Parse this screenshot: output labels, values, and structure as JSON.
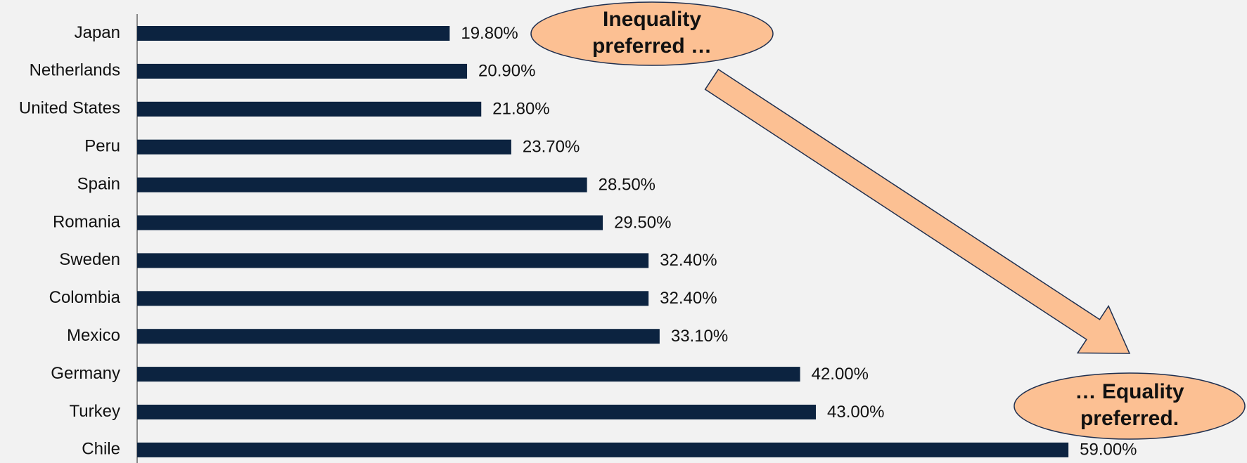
{
  "chart_data": {
    "type": "bar",
    "orientation": "horizontal",
    "categories": [
      "Japan",
      "Netherlands",
      "United States",
      "Peru",
      "Spain",
      "Romania",
      "Sweden",
      "Colombia",
      "Mexico",
      "Germany",
      "Turkey",
      "Chile"
    ],
    "values": [
      19.8,
      20.9,
      21.8,
      23.7,
      28.5,
      29.5,
      32.4,
      32.4,
      33.1,
      42.0,
      43.0,
      59.0
    ],
    "value_labels": [
      "19.80%",
      "20.90%",
      "21.80%",
      "23.70%",
      "28.50%",
      "29.50%",
      "32.40%",
      "32.40%",
      "33.10%",
      "42.00%",
      "43.00%",
      "59.00%"
    ],
    "color": "#0c2340",
    "xlim": [
      0,
      70
    ],
    "annotations": [
      {
        "lines": [
          "Inequality",
          "preferred …"
        ]
      },
      {
        "lines": [
          "… Equality",
          "preferred."
        ]
      }
    ]
  }
}
